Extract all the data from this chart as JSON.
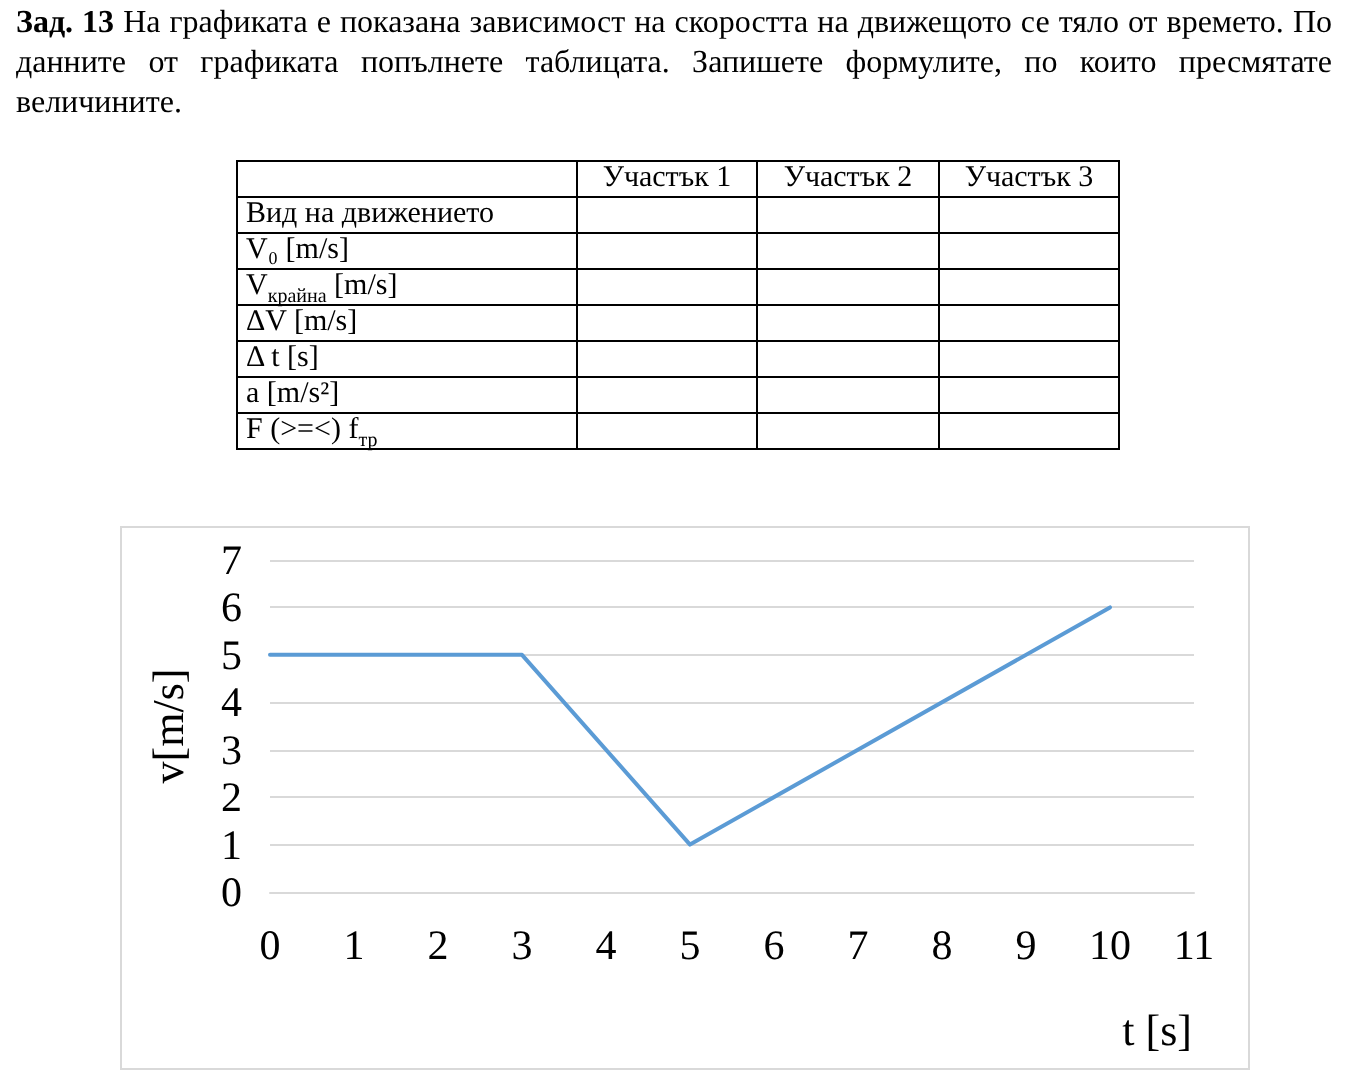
{
  "chart_data": [
    {
      "type": "other",
      "title": "Зад. 13",
      "subtitle": "На графиката е показана зависимост на скоростта на движещото се тяло от времето. По данните от графиката попълнете таблицата. Запишете формулите, по които пресмятате величините.",
      "categories": [
        "Участък 1",
        "Участък 2",
        "Участък 3"
      ],
      "y_categories": [
        "Вид на движението",
        "V₀ [m/s]",
        "V$_{крайна}$ [m/s]",
        "ΔV [m/s]",
        "Δ t [s]",
        "a [m/s²]",
        "F (>=<) f$_{тр}$"
      ]
    },
    {
      "type": "line",
      "xlabel": "t [s]",
      "ylabel": "v[m/s]",
      "series": [
        {
          "color": "#5b9bd5",
          "x": [
            0,
            3,
            5,
            10
          ],
          "values": [
            5,
            5,
            1,
            6
          ]
        }
      ],
      "xlim": [
        0,
        11
      ],
      "xticks": [
        0,
        1,
        2,
        3,
        4,
        5,
        6,
        7,
        8,
        9,
        10,
        11
      ],
      "ylim": [
        0,
        7
      ],
      "yticks": [
        0,
        1,
        2,
        3,
        4,
        5,
        6,
        7
      ],
      "grid": "y",
      "marker": "none",
      "line_style": "solid"
    }
  ]
}
